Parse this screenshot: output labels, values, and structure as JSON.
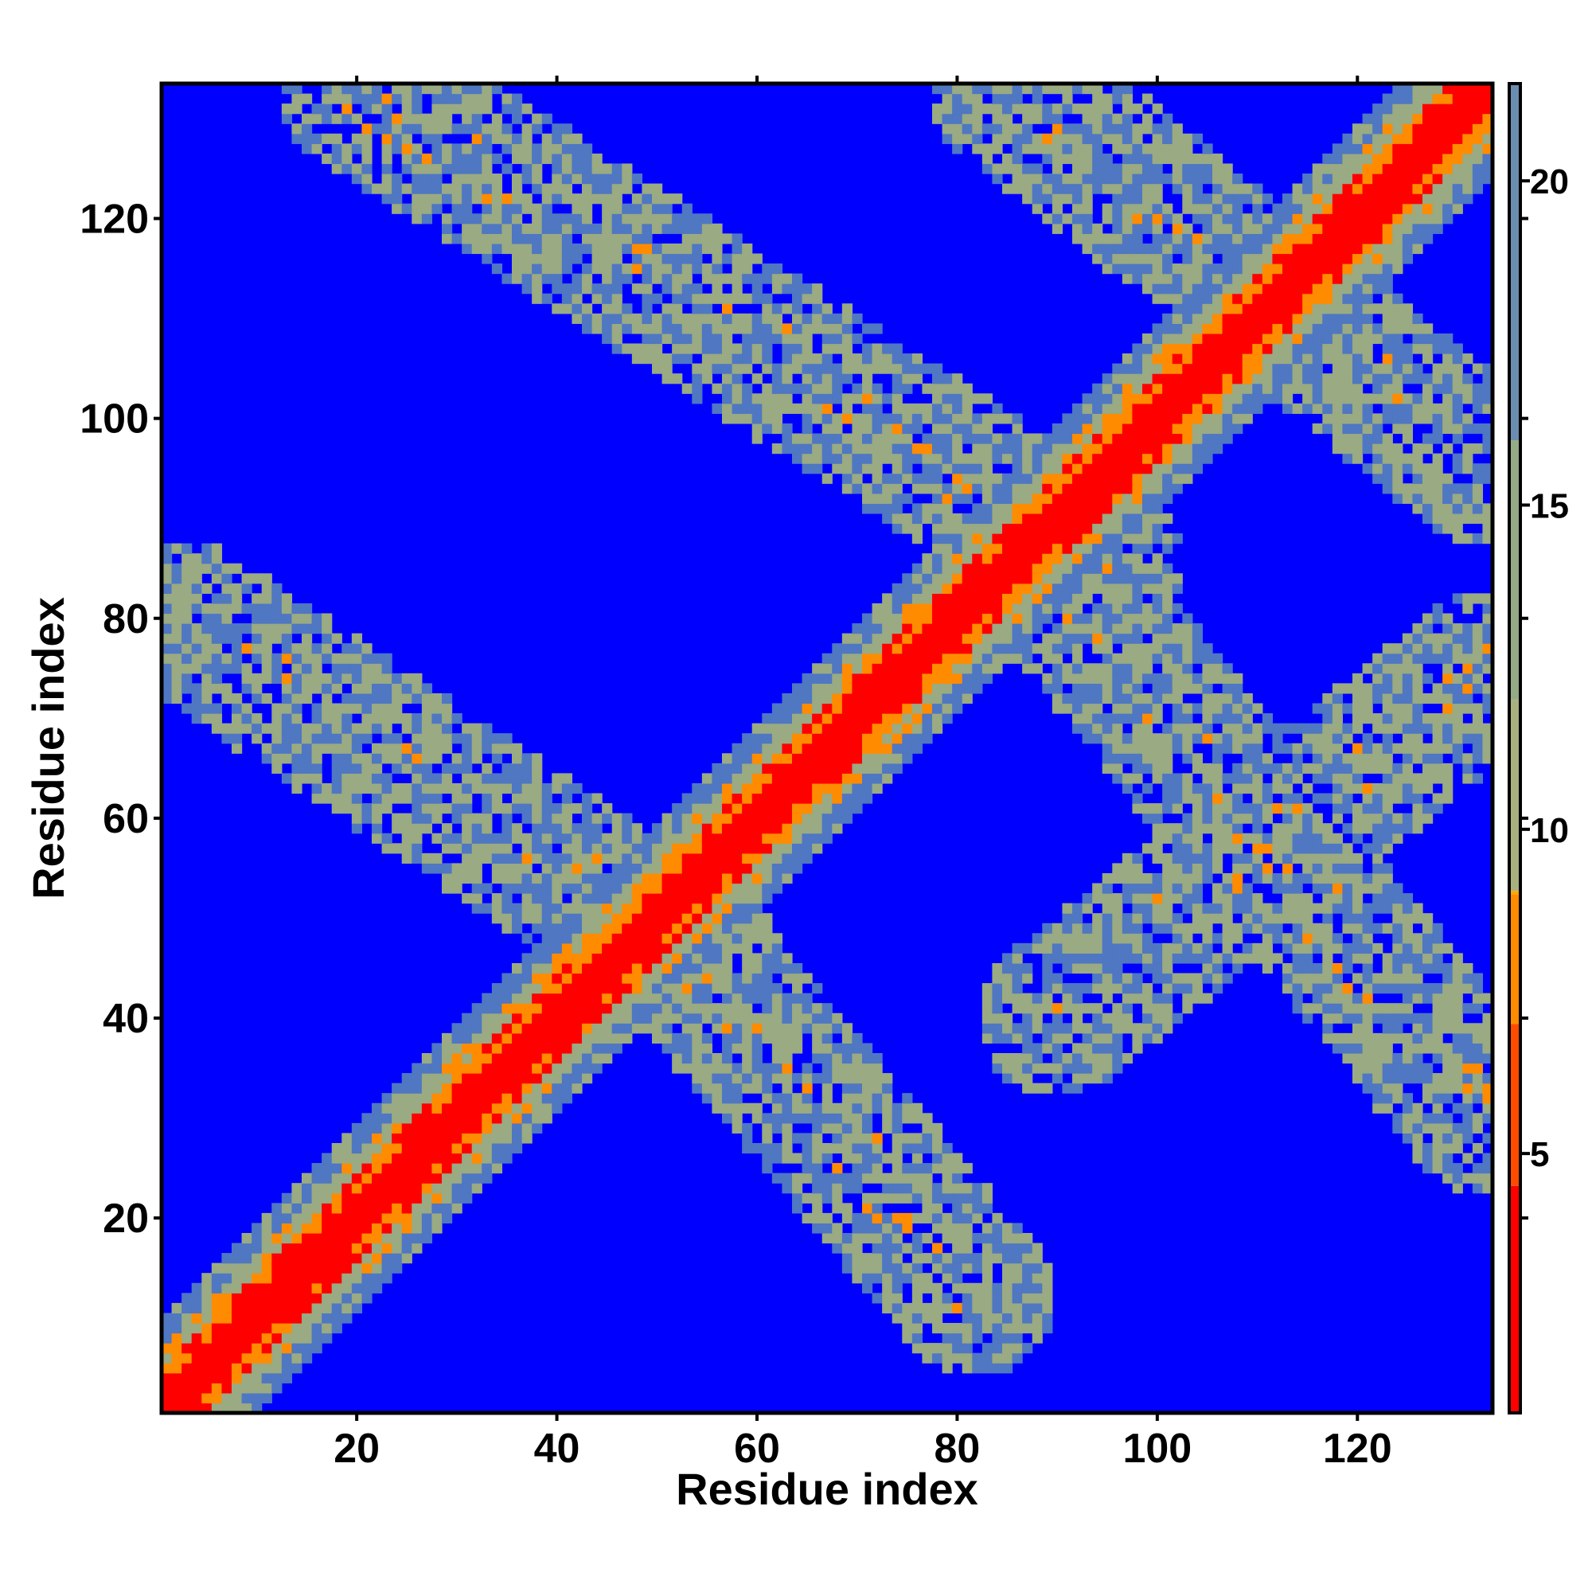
{
  "chart_data": {
    "type": "heatmap",
    "title": "",
    "xlabel": "Residue index",
    "ylabel": "Residue index",
    "n_residues": 133,
    "xlim": [
      1,
      133
    ],
    "ylim": [
      1,
      133
    ],
    "x_ticks": [
      20,
      40,
      60,
      80,
      100,
      120
    ],
    "y_ticks": [
      20,
      40,
      60,
      80,
      100,
      120
    ],
    "colorbar": {
      "range": [
        1,
        21.5
      ],
      "ticks": [
        5,
        10,
        15,
        20
      ],
      "placement": "right"
    },
    "colors": {
      "background": "#0000ff",
      "low": "#ff0000",
      "mid": "#ff8c00",
      "high_near": "#9aaa82",
      "high_far": "#4f77c2"
    },
    "features": [
      {
        "label": "main diagonal contact band",
        "start": [
          1,
          1
        ],
        "end": [
          133,
          133
        ]
      },
      {
        "label": "antiparallel band A",
        "start": [
          3,
          80
        ],
        "end": [
          55,
          45
        ]
      },
      {
        "label": "antiparallel band B",
        "start": [
          48,
          52
        ],
        "end": [
          82,
          12
        ]
      },
      {
        "label": "antiparallel band C",
        "start": [
          20,
          133
        ],
        "end": [
          95,
          85
        ]
      },
      {
        "label": "antiparallel band D",
        "start": [
          85,
          90
        ],
        "end": [
          133,
          30
        ]
      },
      {
        "label": "antiparallel band E",
        "start": [
          85,
          133
        ],
        "end": [
          133,
          95
        ]
      },
      {
        "label": "antiparallel band F",
        "start": [
          90,
          40
        ],
        "end": [
          133,
          75
        ]
      }
    ]
  }
}
